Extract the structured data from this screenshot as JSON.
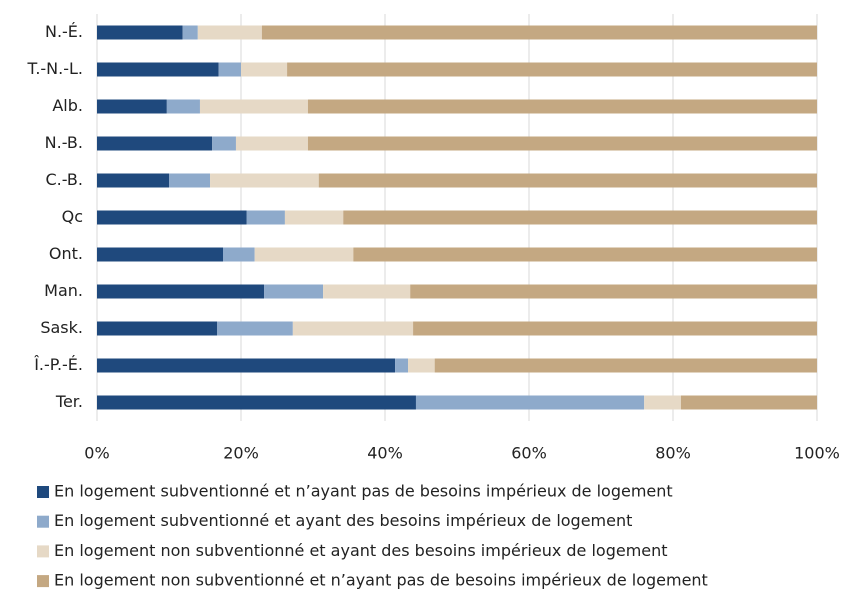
{
  "chart_data": {
    "type": "stacked_barh",
    "categories": [
      "N.-É.",
      "T.-N.-L.",
      "Alb.",
      "N.-B.",
      "C.-B.",
      "Qc",
      "Ont.",
      "Man.",
      "Sask.",
      "Î.-P.-É.",
      "Ter."
    ],
    "series": [
      {
        "name": "En logement subventionné et n’ayant pas de besoins impérieux de logement",
        "color": "#1f497d",
        "values": [
          11.9,
          16.9,
          9.7,
          16.0,
          10.0,
          20.8,
          17.5,
          23.2,
          16.7,
          41.4,
          44.3
        ]
      },
      {
        "name": "En logement subventionné et ayant des besoins impérieux de logement",
        "color": "#8eaacb",
        "values": [
          2.1,
          3.1,
          4.6,
          3.3,
          5.7,
          5.3,
          4.4,
          8.2,
          10.5,
          1.8,
          31.7
        ]
      },
      {
        "name": "En logement non subventionné et ayant des besoins impérieux de logement",
        "color": "#e6d9c6",
        "values": [
          8.9,
          6.4,
          15.0,
          10.0,
          15.1,
          8.1,
          13.7,
          12.1,
          16.7,
          3.7,
          5.1
        ]
      },
      {
        "name": "En logement non subventionné et n’ayant pas de besoins impérieux de logement",
        "color": "#c4a882",
        "values": [
          77.1,
          73.6,
          70.7,
          70.7,
          69.2,
          65.8,
          64.4,
          56.5,
          56.1,
          53.1,
          18.9
        ]
      }
    ],
    "xlim": [
      0,
      100
    ],
    "xticks": [
      {
        "value": 0,
        "label": "0%"
      },
      {
        "value": 20,
        "label": "20%"
      },
      {
        "value": 40,
        "label": "40%"
      },
      {
        "value": 60,
        "label": "60%"
      },
      {
        "value": 80,
        "label": "80%"
      },
      {
        "value": 100,
        "label": "100%"
      }
    ],
    "grid": true
  }
}
